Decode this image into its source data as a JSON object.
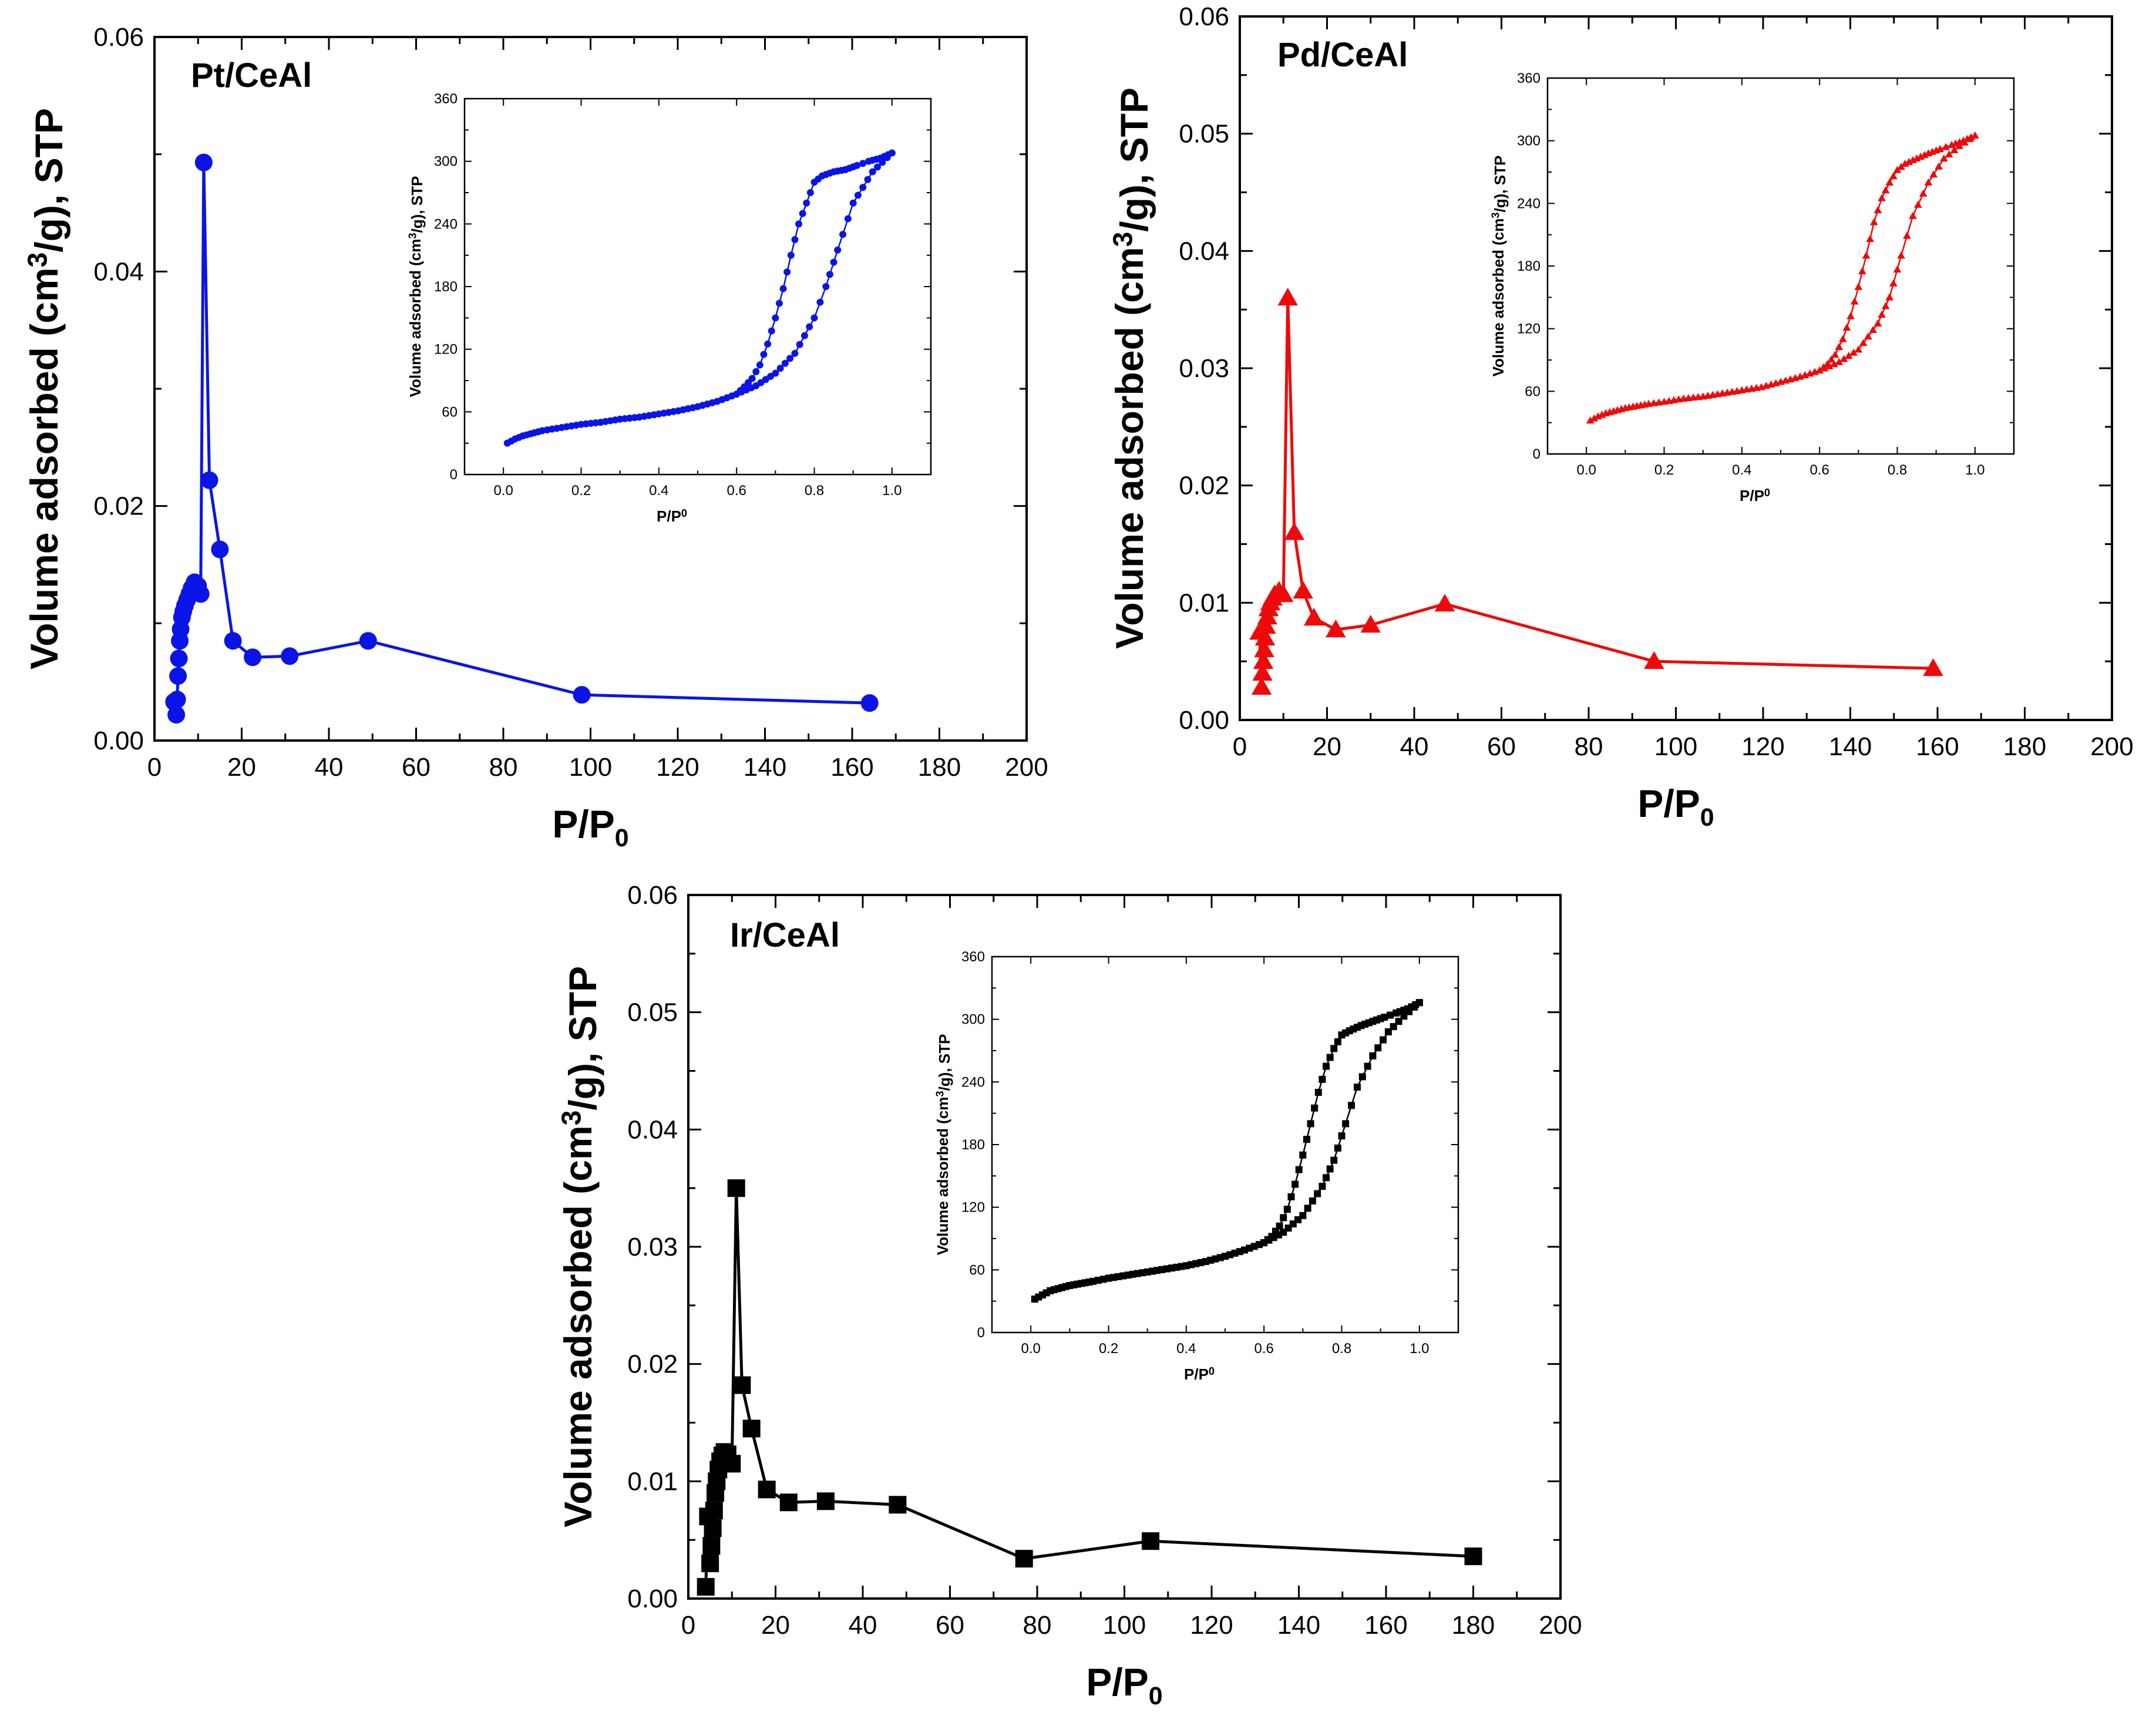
{
  "chart_data": [
    {
      "type": "line",
      "title": "Pt/CeAl",
      "color": "#0a14e6",
      "marker": "circle",
      "xlabel": "P/P",
      "xlabel_sub": "0",
      "ylabel": "Volume adsorbed (cm³/g), STP",
      "xlim": [
        0,
        200
      ],
      "ylim": [
        0,
        0.06
      ],
      "x_ticks": [
        "0",
        "20",
        "40",
        "60",
        "80",
        "100",
        "120",
        "140",
        "160",
        "180",
        "200"
      ],
      "y_ticks": [
        "0.00",
        "0.02",
        "0.04",
        "0.06"
      ],
      "series": [
        {
          "name": "Pt/CeAl",
          "x": [
            4.5,
            5.0,
            5.2,
            5.4,
            5.6,
            5.8,
            6.0,
            6.3,
            6.6,
            7.0,
            7.5,
            8.0,
            8.5,
            9.2,
            10.0,
            10.6,
            11.3,
            12.6,
            15.0,
            18.0,
            22.5,
            31.0,
            49.0,
            98.0,
            164.0
          ],
          "y": [
            0.0033,
            0.0022,
            0.0035,
            0.0055,
            0.007,
            0.0085,
            0.0095,
            0.0105,
            0.011,
            0.0115,
            0.012,
            0.0125,
            0.013,
            0.0135,
            0.0132,
            0.0125,
            0.0493,
            0.0222,
            0.0163,
            0.0085,
            0.0071,
            0.0072,
            0.0085,
            0.0039,
            0.0032
          ]
        }
      ],
      "inset": {
        "xlabel": "P/P",
        "xlabel_sup": "0",
        "ylabel": "Volume adsorbed (cm³/g), STP",
        "xlim": [
          -0.1,
          1.1
        ],
        "ylim": [
          0,
          360
        ],
        "x_ticks": [
          "0.0",
          "0.2",
          "0.4",
          "0.6",
          "0.8",
          "1.0"
        ],
        "y_ticks": [
          "0",
          "60",
          "120",
          "180",
          "240",
          "300",
          "360"
        ],
        "adsorption": [
          [
            0.01,
            30
          ],
          [
            0.03,
            34
          ],
          [
            0.05,
            37
          ],
          [
            0.08,
            40
          ],
          [
            0.1,
            42
          ],
          [
            0.15,
            45
          ],
          [
            0.2,
            48
          ],
          [
            0.25,
            50
          ],
          [
            0.3,
            53
          ],
          [
            0.35,
            55
          ],
          [
            0.4,
            58
          ],
          [
            0.45,
            61
          ],
          [
            0.5,
            65
          ],
          [
            0.55,
            70
          ],
          [
            0.6,
            77
          ],
          [
            0.65,
            85
          ],
          [
            0.7,
            97
          ],
          [
            0.75,
            116
          ],
          [
            0.8,
            150
          ],
          [
            0.83,
            180
          ],
          [
            0.86,
            215
          ],
          [
            0.9,
            260
          ],
          [
            0.95,
            290
          ],
          [
            1.0,
            308
          ]
        ],
        "desorption": [
          [
            1.0,
            308
          ],
          [
            0.97,
            303
          ],
          [
            0.94,
            300
          ],
          [
            0.91,
            296
          ],
          [
            0.88,
            292
          ],
          [
            0.85,
            290
          ],
          [
            0.82,
            286
          ],
          [
            0.8,
            280
          ],
          [
            0.78,
            260
          ],
          [
            0.76,
            240
          ],
          [
            0.74,
            210
          ],
          [
            0.72,
            178
          ],
          [
            0.7,
            150
          ],
          [
            0.68,
            125
          ],
          [
            0.66,
            105
          ],
          [
            0.64,
            92
          ],
          [
            0.62,
            84
          ],
          [
            0.6,
            77
          ]
        ]
      }
    },
    {
      "type": "line",
      "title": "Pd/CeAl",
      "color": "#ee0a0a",
      "marker": "triangle",
      "xlabel": "P/P",
      "xlabel_sub": "0",
      "ylabel": "Volume adsorbed (cm³/g), STP",
      "xlim": [
        0,
        200
      ],
      "ylim": [
        0,
        0.06
      ],
      "x_ticks": [
        "0",
        "20",
        "40",
        "60",
        "80",
        "100",
        "120",
        "140",
        "160",
        "180",
        "200"
      ],
      "y_ticks": [
        "0.00",
        "0.01",
        "0.02",
        "0.03",
        "0.04",
        "0.05",
        "0.06"
      ],
      "series": [
        {
          "name": "Pd/CeAl",
          "x": [
            4.5,
            5.0,
            5.2,
            5.4,
            5.6,
            5.8,
            6.0,
            6.3,
            6.6,
            7.0,
            7.5,
            8.0,
            9.0,
            10.0,
            11.0,
            12.5,
            14.5,
            17.0,
            22.0,
            30.0,
            47.0,
            95.0,
            159.0
          ],
          "y": [
            0.0075,
            0.0028,
            0.004,
            0.005,
            0.006,
            0.007,
            0.008,
            0.0088,
            0.0095,
            0.01,
            0.0104,
            0.0107,
            0.011,
            0.0107,
            0.036,
            0.016,
            0.011,
            0.0087,
            0.0077,
            0.0081,
            0.0099,
            0.005,
            0.0044
          ]
        }
      ],
      "inset": {
        "xlabel": "P/P",
        "xlabel_sup": "0",
        "ylabel": "Volume adsorbed (cm³/g), STP",
        "xlim": [
          -0.1,
          1.1
        ],
        "ylim": [
          0,
          360
        ],
        "x_ticks": [
          "0.0",
          "0.2",
          "0.4",
          "0.6",
          "0.8",
          "1.0"
        ],
        "y_ticks": [
          "0",
          "60",
          "120",
          "180",
          "240",
          "300",
          "360"
        ],
        "adsorption": [
          [
            0.01,
            32
          ],
          [
            0.03,
            36
          ],
          [
            0.05,
            39
          ],
          [
            0.08,
            42
          ],
          [
            0.1,
            44
          ],
          [
            0.13,
            46
          ],
          [
            0.16,
            48
          ],
          [
            0.2,
            50
          ],
          [
            0.25,
            53
          ],
          [
            0.3,
            55
          ],
          [
            0.35,
            58
          ],
          [
            0.4,
            61
          ],
          [
            0.45,
            64
          ],
          [
            0.5,
            69
          ],
          [
            0.55,
            74
          ],
          [
            0.6,
            80
          ],
          [
            0.65,
            88
          ],
          [
            0.7,
            100
          ],
          [
            0.75,
            125
          ],
          [
            0.78,
            150
          ],
          [
            0.81,
            190
          ],
          [
            0.84,
            228
          ],
          [
            0.88,
            260
          ],
          [
            0.92,
            283
          ],
          [
            0.96,
            295
          ],
          [
            1.0,
            305
          ]
        ],
        "desorption": [
          [
            1.0,
            305
          ],
          [
            0.97,
            300
          ],
          [
            0.94,
            296
          ],
          [
            0.91,
            292
          ],
          [
            0.88,
            288
          ],
          [
            0.85,
            283
          ],
          [
            0.82,
            278
          ],
          [
            0.8,
            272
          ],
          [
            0.78,
            260
          ],
          [
            0.76,
            245
          ],
          [
            0.74,
            222
          ],
          [
            0.72,
            190
          ],
          [
            0.7,
            160
          ],
          [
            0.68,
            132
          ],
          [
            0.66,
            110
          ],
          [
            0.64,
            95
          ],
          [
            0.62,
            86
          ],
          [
            0.6,
            80
          ]
        ]
      }
    },
    {
      "type": "line",
      "title": "Ir/CeAl",
      "color": "#000000",
      "marker": "square",
      "xlabel": "P/P",
      "xlabel_sub": "0",
      "ylabel": "Volume adsorbed (cm³/g), STP",
      "xlim": [
        0,
        200
      ],
      "ylim": [
        0,
        0.06
      ],
      "x_ticks": [
        "0",
        "20",
        "40",
        "60",
        "80",
        "100",
        "120",
        "140",
        "160",
        "180",
        "200"
      ],
      "y_ticks": [
        "0.00",
        "0.01",
        "0.02",
        "0.03",
        "0.04",
        "0.05",
        "0.06"
      ],
      "series": [
        {
          "name": "Ir/CeAl",
          "x": [
            4.0,
            4.5,
            5.0,
            5.3,
            5.6,
            5.9,
            6.2,
            6.5,
            6.9,
            7.3,
            7.8,
            8.3,
            9.0,
            10.0,
            11.0,
            12.3,
            14.5,
            18.0,
            23.0,
            31.5,
            48.0,
            77.0,
            106.0,
            180.0
          ],
          "y": [
            0.001,
            0.007,
            0.003,
            0.0045,
            0.006,
            0.0075,
            0.009,
            0.01,
            0.011,
            0.0117,
            0.0122,
            0.0125,
            0.0123,
            0.0115,
            0.035,
            0.0182,
            0.0145,
            0.0093,
            0.0082,
            0.0083,
            0.008,
            0.0034,
            0.0049,
            0.0036
          ]
        }
      ],
      "inset": {
        "xlabel": "P/P",
        "xlabel_sup": "0",
        "ylabel": "Volume adsorbed (cm³/g), STP",
        "xlim": [
          -0.1,
          1.1
        ],
        "ylim": [
          0,
          360
        ],
        "x_ticks": [
          "0.0",
          "0.2",
          "0.4",
          "0.6",
          "0.8",
          "1.0"
        ],
        "y_ticks": [
          "0",
          "60",
          "120",
          "180",
          "240",
          "300",
          "360"
        ],
        "adsorption": [
          [
            0.01,
            32
          ],
          [
            0.03,
            36
          ],
          [
            0.05,
            40
          ],
          [
            0.08,
            43
          ],
          [
            0.1,
            45
          ],
          [
            0.13,
            47
          ],
          [
            0.16,
            49
          ],
          [
            0.2,
            52
          ],
          [
            0.25,
            55
          ],
          [
            0.3,
            58
          ],
          [
            0.35,
            61
          ],
          [
            0.4,
            64
          ],
          [
            0.45,
            68
          ],
          [
            0.5,
            73
          ],
          [
            0.55,
            79
          ],
          [
            0.6,
            86
          ],
          [
            0.65,
            96
          ],
          [
            0.7,
            112
          ],
          [
            0.75,
            140
          ],
          [
            0.78,
            165
          ],
          [
            0.81,
            200
          ],
          [
            0.84,
            235
          ],
          [
            0.88,
            265
          ],
          [
            0.92,
            288
          ],
          [
            0.96,
            303
          ],
          [
            1.0,
            316
          ]
        ],
        "desorption": [
          [
            1.0,
            316
          ],
          [
            0.97,
            310
          ],
          [
            0.94,
            306
          ],
          [
            0.91,
            302
          ],
          [
            0.88,
            298
          ],
          [
            0.85,
            294
          ],
          [
            0.82,
            289
          ],
          [
            0.8,
            285
          ],
          [
            0.78,
            272
          ],
          [
            0.76,
            255
          ],
          [
            0.74,
            230
          ],
          [
            0.72,
            200
          ],
          [
            0.7,
            170
          ],
          [
            0.68,
            142
          ],
          [
            0.66,
            118
          ],
          [
            0.64,
            102
          ],
          [
            0.62,
            92
          ],
          [
            0.6,
            86
          ]
        ]
      }
    }
  ]
}
